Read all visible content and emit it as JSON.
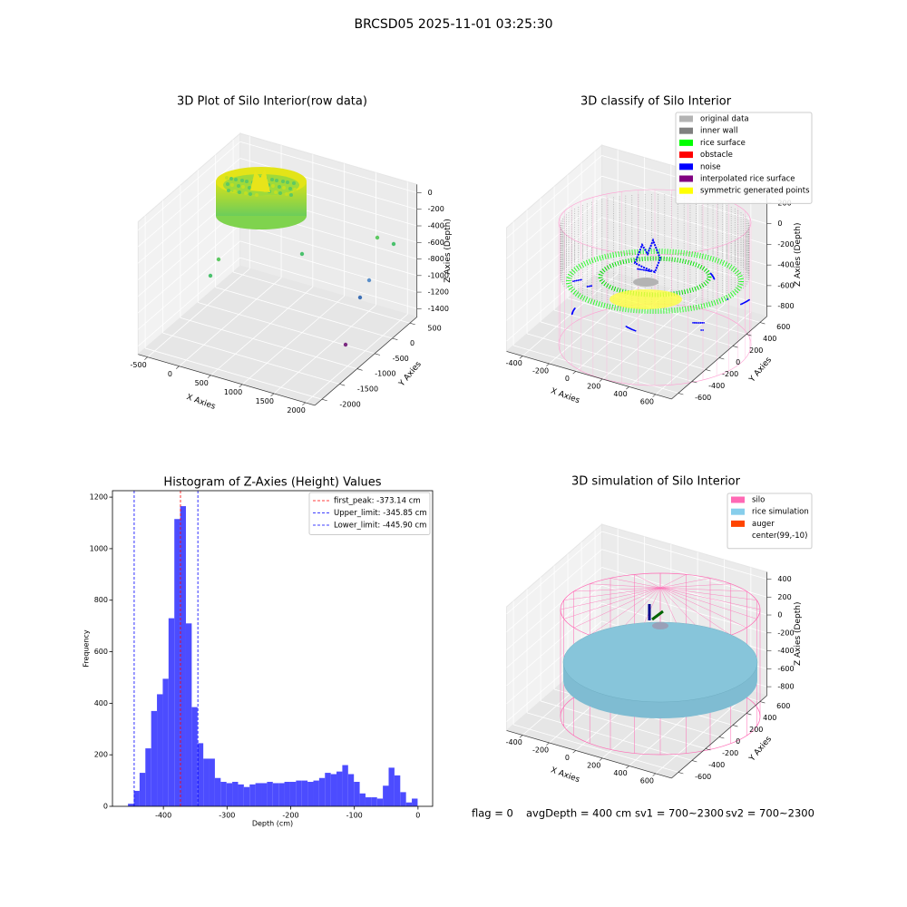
{
  "title": "BRCSD05 2025-11-01 03:25:30",
  "chart_data": [
    {
      "type": "scatter3d",
      "title": "3D Plot of Silo Interior(row data)",
      "xlabel": "X Axies",
      "ylabel": "Y Axies",
      "zlabel": "Z Axies (Depth)",
      "xlim": [
        -650,
        2150
      ],
      "ylim": [
        -2200,
        700
      ],
      "zlim": [
        -1500,
        100
      ],
      "xticks": [
        -500,
        0,
        500,
        1000,
        1500,
        2000
      ],
      "yticks": [
        -2000,
        -1500,
        -1000,
        -500,
        0,
        500
      ],
      "zticks": [
        -1400,
        -1200,
        -1000,
        -800,
        -600,
        -400,
        -200,
        0
      ]
    },
    {
      "type": "scatter3d",
      "title": "3D classify of Silo Interior",
      "xlabel": "X Axies",
      "ylabel": "Y Axies",
      "zlabel": "Z Axies (Depth)",
      "xlim": [
        -520,
        720
      ],
      "ylim": [
        -700,
        700
      ],
      "zlim": [
        -900,
        300
      ],
      "xticks": [
        -400,
        -200,
        0,
        200,
        400,
        600
      ],
      "yticks": [
        -600,
        -400,
        -200,
        0,
        200,
        400,
        600
      ],
      "zticks": [
        -800,
        -600,
        -400,
        -200,
        0,
        200
      ],
      "series": [
        {
          "name": "original data",
          "color": "#b3b3b3"
        },
        {
          "name": "inner wall",
          "color": "#808080"
        },
        {
          "name": "rice surface",
          "color": "#00ff00"
        },
        {
          "name": "obstacle",
          "color": "#ff0000"
        },
        {
          "name": "noise",
          "color": "#0000ff"
        },
        {
          "name": "interpolated rice surface",
          "color": "#800080"
        },
        {
          "name": "symmetric generated points",
          "color": "#ffff00"
        }
      ]
    },
    {
      "type": "histogram",
      "title": "Histogram of Z-Axies (Height) Values",
      "xlabel": "Depth (cm)",
      "ylabel": "Frequency",
      "color": "#4c4cff",
      "xlim": [
        -480,
        23
      ],
      "ylim": [
        0,
        1225
      ],
      "xticks": [
        -400,
        -300,
        -200,
        -100,
        0
      ],
      "yticks": [
        0,
        200,
        400,
        600,
        800,
        1000,
        1200
      ],
      "bins": [
        -455.6,
        -446.5,
        -437.4,
        -428.3,
        -419.2,
        -410.1,
        -401.0,
        -391.9,
        -382.8,
        -373.7,
        -364.6,
        -355.5,
        -346.4,
        -337.3,
        -328.2,
        -319.1,
        -310.0,
        -300.9,
        -291.8,
        -282.7,
        -273.6,
        -264.5,
        -255.4,
        -246.3,
        -237.2,
        -228.1,
        -219.0,
        -209.9,
        -200.8,
        -191.7,
        -182.6,
        -173.5,
        -164.4,
        -155.3,
        -146.2,
        -137.1,
        -128.0,
        -118.9,
        -109.8,
        -100.7,
        -91.6,
        -82.5,
        -73.4,
        -64.3,
        -55.2,
        -46.1,
        -37.0,
        -27.9,
        -18.8,
        -9.7,
        -0.6
      ],
      "values": [
        10,
        60,
        130,
        225,
        370,
        435,
        495,
        730,
        1115,
        1165,
        710,
        385,
        245,
        185,
        185,
        110,
        95,
        90,
        95,
        85,
        75,
        85,
        90,
        90,
        95,
        90,
        90,
        95,
        95,
        100,
        100,
        95,
        100,
        110,
        130,
        125,
        135,
        160,
        125,
        95,
        50,
        35,
        35,
        30,
        80,
        150,
        120,
        55,
        15,
        30
      ],
      "lines": [
        {
          "name": "first_peak: -373.14 cm",
          "value": -373.14,
          "color": "#ff0000"
        },
        {
          "name": "Upper_limit: -345.85 cm",
          "value": -345.85,
          "color": "#0000ff"
        },
        {
          "name": "Lower_limit: -445.90 cm",
          "value": -445.9,
          "color": "#0000ff"
        }
      ],
      "legend": "upper right"
    },
    {
      "type": "scatter3d",
      "title": "3D simulation of Silo Interior",
      "xlabel": "X Axies",
      "ylabel": "Y Axies",
      "zlabel": "Z Axies (Depth)",
      "xlim": [
        -520,
        720
      ],
      "ylim": [
        -700,
        700
      ],
      "zlim": [
        -900,
        480
      ],
      "xticks": [
        -400,
        -200,
        0,
        200,
        400,
        600
      ],
      "yticks": [
        -600,
        -400,
        -200,
        0,
        200,
        400,
        600
      ],
      "zticks": [
        -800,
        -600,
        -400,
        -200,
        0,
        200,
        400
      ],
      "series": [
        {
          "name": "silo",
          "color": "#ff69b4"
        },
        {
          "name": "rice simulation",
          "color": "#87ceeb"
        },
        {
          "name": "auger",
          "color": "#ff4500"
        },
        {
          "name": "center(99,-10)",
          "color": "#ffffff"
        }
      ]
    }
  ],
  "footer": [
    "flag = 0",
    "avgDepth = 400 cm",
    "sv1 = 700~2300",
    "sv2 = 700~2300"
  ]
}
